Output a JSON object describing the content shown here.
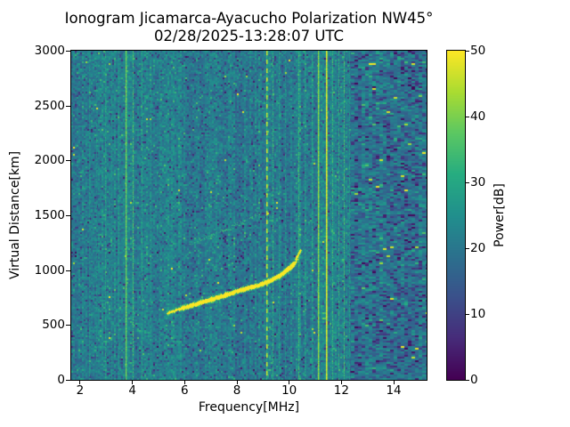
{
  "chart_data": {
    "type": "heatmap",
    "title": "Ionogram Jicamarca-Ayacucho Polarization NW45°",
    "subtitle": "02/28/2025-13:28:07 UTC",
    "xlabel": "Frequency[MHz]",
    "ylabel": "Virtual Distance[km]",
    "colorbar_label": "Power[dB]",
    "colormap": "viridis",
    "colormap_colors": {
      "low": "#440154",
      "mid": "#21918c",
      "high": "#fde725"
    },
    "xlim": [
      1.66,
      15.26
    ],
    "ylim": [
      0,
      3000
    ],
    "clim": [
      0,
      50
    ],
    "x_ticks": [
      2,
      4,
      6,
      8,
      10,
      12,
      14
    ],
    "y_ticks": [
      0,
      500,
      1000,
      1500,
      2000,
      2500,
      3000
    ],
    "colorbar_ticks": [
      0,
      10,
      20,
      30,
      40,
      50
    ],
    "noise": {
      "mean_db": 21.5,
      "sigma_db": 5.2,
      "right_region_start_mhz": 12.3,
      "right_mean_db": 19.5
    },
    "main_trace": {
      "name": "F-layer echo trace",
      "power_db": 49,
      "points": [
        [
          5.35,
          615
        ],
        [
          5.8,
          650
        ],
        [
          6.4,
          690
        ],
        [
          7.0,
          735
        ],
        [
          7.6,
          780
        ],
        [
          8.2,
          825
        ],
        [
          8.8,
          862
        ],
        [
          9.2,
          900
        ],
        [
          9.6,
          948
        ],
        [
          9.9,
          1000
        ],
        [
          10.15,
          1058
        ],
        [
          10.3,
          1120
        ],
        [
          10.42,
          1185
        ]
      ]
    },
    "faint_trace": {
      "name": "diffuse spread echo",
      "power_db": 31,
      "points": [
        [
          6.2,
          1230
        ],
        [
          6.8,
          1295
        ],
        [
          7.5,
          1365
        ],
        [
          8.2,
          1440
        ],
        [
          8.9,
          1530
        ]
      ]
    },
    "rfi_lines": [
      {
        "freq": 2.35,
        "power_db": 26,
        "style": "noisy"
      },
      {
        "freq": 2.6,
        "power_db": 25,
        "style": "noisy"
      },
      {
        "freq": 2.95,
        "power_db": 30,
        "style": "noisy"
      },
      {
        "freq": 3.2,
        "power_db": 26,
        "style": "noisy"
      },
      {
        "freq": 3.45,
        "power_db": 28,
        "style": "noisy"
      },
      {
        "freq": 3.75,
        "power_db": 40,
        "style": "solid"
      },
      {
        "freq": 4.0,
        "power_db": 36,
        "style": "noisy"
      },
      {
        "freq": 4.35,
        "power_db": 30,
        "style": "noisy"
      },
      {
        "freq": 4.7,
        "power_db": 27,
        "style": "noisy"
      },
      {
        "freq": 5.05,
        "power_db": 26,
        "style": "noisy"
      },
      {
        "freq": 6.95,
        "power_db": 25,
        "style": "noisy"
      },
      {
        "freq": 9.12,
        "power_db": 48,
        "style": "dashed"
      },
      {
        "freq": 9.35,
        "power_db": 33,
        "style": "noisy"
      },
      {
        "freq": 9.6,
        "power_db": 29,
        "style": "noisy"
      },
      {
        "freq": 9.85,
        "power_db": 27,
        "style": "noisy"
      },
      {
        "freq": 10.35,
        "power_db": 35,
        "style": "noisy"
      },
      {
        "freq": 10.6,
        "power_db": 29,
        "style": "noisy"
      },
      {
        "freq": 10.85,
        "power_db": 30,
        "style": "noisy"
      },
      {
        "freq": 11.1,
        "power_db": 42,
        "style": "solid"
      },
      {
        "freq": 11.42,
        "power_db": 49,
        "style": "solid"
      },
      {
        "freq": 11.65,
        "power_db": 34,
        "style": "noisy"
      },
      {
        "freq": 11.9,
        "power_db": 33,
        "style": "noisy"
      },
      {
        "freq": 12.1,
        "power_db": 35,
        "style": "noisy"
      },
      {
        "freq": 12.3,
        "power_db": 28,
        "style": "noisy"
      }
    ]
  }
}
